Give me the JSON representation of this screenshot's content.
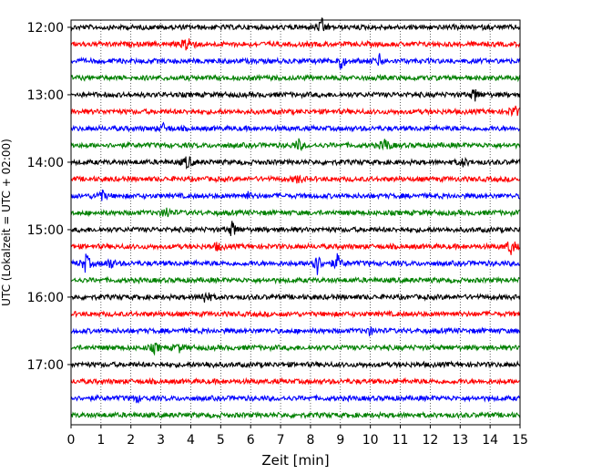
{
  "chart_data": {
    "type": "line",
    "subtype": "seismogram-helicorder",
    "xlabel": "Zeit  [min]",
    "ylabel": "UTC (Lokalzeit = UTC + 02:00)",
    "xlim": [
      0,
      15
    ],
    "x_ticks": [
      0,
      1,
      2,
      3,
      4,
      5,
      6,
      7,
      8,
      9,
      10,
      11,
      12,
      13,
      14,
      15
    ],
    "x_tick_labels": [
      "0",
      "1",
      "2",
      "3",
      "4",
      "5",
      "6",
      "7",
      "8",
      "9",
      "10",
      "11",
      "12",
      "13",
      "14",
      "15"
    ],
    "y_tick_labels": [
      "12:00",
      "13:00",
      "14:00",
      "15:00",
      "16:00",
      "17:00"
    ],
    "vertical_grid": true,
    "grid_style": "dotted",
    "trace_colors_cycle": [
      "#000000",
      "#ff0000",
      "#0000ff",
      "#008000"
    ],
    "row_duration_min": 15,
    "traces": [
      {
        "start": "12:00",
        "color": "#000000",
        "events": [
          [
            8.4,
            1.0
          ]
        ]
      },
      {
        "start": "12:15",
        "color": "#ff0000",
        "events": [
          [
            3.9,
            1.3
          ]
        ]
      },
      {
        "start": "12:30",
        "color": "#0000ff",
        "events": [
          [
            9.0,
            1.0
          ],
          [
            10.3,
            0.7
          ]
        ]
      },
      {
        "start": "12:45",
        "color": "#008000",
        "events": []
      },
      {
        "start": "13:00",
        "color": "#000000",
        "events": [
          [
            13.5,
            0.8
          ]
        ]
      },
      {
        "start": "13:15",
        "color": "#ff0000",
        "events": [
          [
            14.8,
            0.8
          ]
        ]
      },
      {
        "start": "13:30",
        "color": "#0000ff",
        "events": [
          [
            3.1,
            0.5
          ]
        ]
      },
      {
        "start": "13:45",
        "color": "#008000",
        "events": [
          [
            7.6,
            0.7
          ],
          [
            10.5,
            0.9
          ]
        ]
      },
      {
        "start": "14:00",
        "color": "#000000",
        "events": [
          [
            3.9,
            0.9
          ],
          [
            13.1,
            0.5
          ]
        ]
      },
      {
        "start": "14:15",
        "color": "#ff0000",
        "events": [
          [
            7.6,
            0.5
          ]
        ]
      },
      {
        "start": "14:30",
        "color": "#0000ff",
        "events": [
          [
            1.0,
            0.8
          ],
          [
            5.9,
            0.4
          ]
        ]
      },
      {
        "start": "14:45",
        "color": "#008000",
        "events": [
          [
            3.2,
            0.7
          ]
        ]
      },
      {
        "start": "15:00",
        "color": "#000000",
        "events": [
          [
            5.4,
            1.0
          ]
        ]
      },
      {
        "start": "15:15",
        "color": "#ff0000",
        "events": [
          [
            4.9,
            0.5
          ],
          [
            14.7,
            1.1
          ]
        ]
      },
      {
        "start": "15:30",
        "color": "#0000ff",
        "events": [
          [
            0.5,
            1.2
          ],
          [
            1.3,
            0.7
          ],
          [
            8.2,
            1.6
          ],
          [
            8.9,
            1.0
          ]
        ]
      },
      {
        "start": "15:45",
        "color": "#008000",
        "events": []
      },
      {
        "start": "16:00",
        "color": "#000000",
        "events": [
          [
            4.5,
            0.9
          ]
        ]
      },
      {
        "start": "16:15",
        "color": "#ff0000",
        "events": []
      },
      {
        "start": "16:30",
        "color": "#0000ff",
        "events": [
          [
            10.0,
            0.4
          ]
        ]
      },
      {
        "start": "16:45",
        "color": "#008000",
        "events": [
          [
            2.8,
            0.6
          ],
          [
            3.6,
            0.5
          ]
        ]
      },
      {
        "start": "17:00",
        "color": "#000000",
        "events": [
          [
            4.6,
            0.3
          ]
        ]
      },
      {
        "start": "17:15",
        "color": "#ff0000",
        "events": []
      },
      {
        "start": "17:30",
        "color": "#0000ff",
        "events": [
          [
            2.2,
            0.4
          ]
        ]
      },
      {
        "start": "17:45",
        "color": "#008000",
        "events": []
      }
    ]
  }
}
